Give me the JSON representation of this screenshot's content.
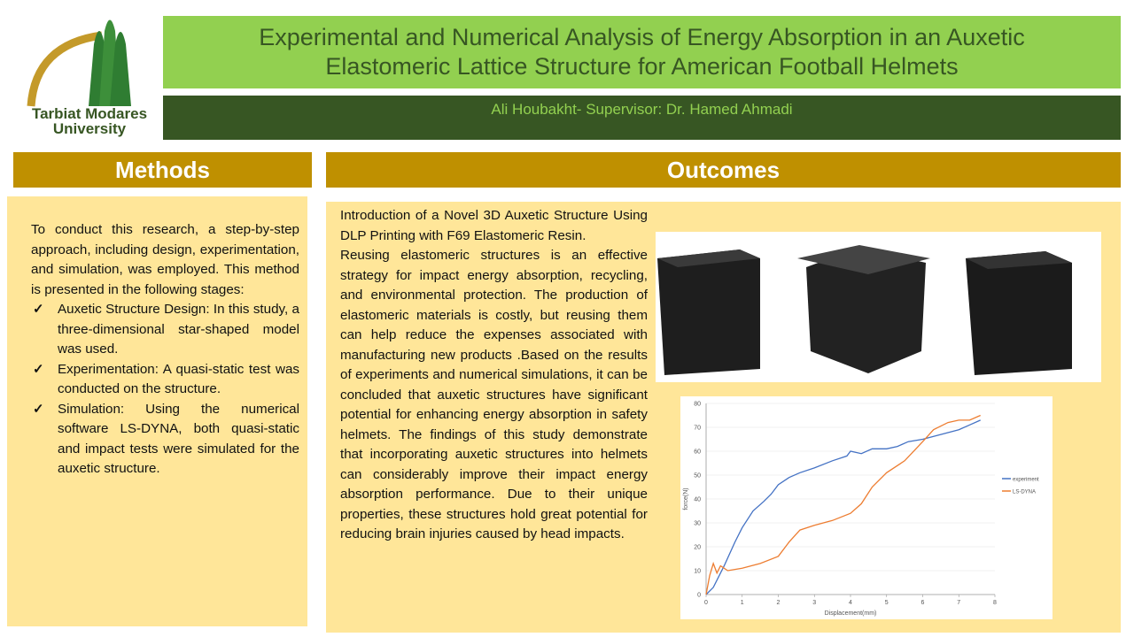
{
  "logo": {
    "line1": "Tarbiat Modares",
    "line2": "University"
  },
  "header": {
    "title": "Experimental and Numerical Analysis of Energy Absorption in an Auxetic Elastomeric Lattice Structure for American Football Helmets",
    "authors": "Ali Houbakht- Supervisor: Dr. Hamed Ahmadi"
  },
  "methods": {
    "heading": "Methods",
    "intro": "To conduct this research, a step-by-step approach, including design, experimentation, and simulation, was employed. This method is presented in the following stages:",
    "items": [
      "Auxetic Structure Design: In this study, a three-dimensional star-shaped model was used.",
      "Experimentation: A quasi-static test was conducted on the structure.",
      "Simulation: Using the numerical software LS-DYNA, both quasi-static and impact tests were simulated for the auxetic structure."
    ]
  },
  "outcomes": {
    "heading": "Outcomes",
    "paragraphs": [
      "Introduction of a Novel 3D Auxetic Structure Using DLP Printing with F69 Elastomeric Resin.",
      "Reusing elastomeric structures is an effective strategy for impact energy absorption, recycling, and environmental protection. The production of elastomeric materials is costly, but reusing them can help reduce the expenses associated with manufacturing new products .Based on the results of experiments and numerical simulations, it can be concluded that auxetic structures have significant potential for enhancing energy absorption in safety helmets. The findings of this study demonstrate that incorporating auxetic structures into helmets can considerably improve their impact energy absorption performance. Due to their unique properties, these structures hold great potential for reducing brain injuries caused by head impacts."
    ]
  },
  "chart_data": {
    "type": "line",
    "x_label": "Displacement(mm)",
    "y_label": "force(N)",
    "xlim": [
      0,
      8
    ],
    "xticks": [
      0,
      1,
      2,
      3,
      4,
      5,
      6,
      7,
      8
    ],
    "ylim": [
      0,
      80
    ],
    "yticks": [
      0,
      10,
      20,
      30,
      40,
      50,
      60,
      70,
      80
    ],
    "grid": true,
    "legend": "right",
    "series": [
      {
        "name": "experiment",
        "color": "#4472c4",
        "x": [
          0,
          0.2,
          0.5,
          0.8,
          1,
          1.3,
          1.6,
          1.8,
          2,
          2.3,
          2.6,
          3,
          3.5,
          3.9,
          4,
          4.3,
          4.6,
          5,
          5.3,
          5.6,
          6,
          6.5,
          7,
          7.3,
          7.6
        ],
        "values": [
          0,
          3,
          12,
          22,
          28,
          35,
          39,
          42,
          46,
          49,
          51,
          53,
          56,
          58,
          60,
          59,
          61,
          61,
          62,
          64,
          65,
          67,
          69,
          71,
          73
        ]
      },
      {
        "name": "LS-DYNA",
        "color": "#ed7d31",
        "x": [
          0,
          0.1,
          0.2,
          0.3,
          0.4,
          0.6,
          1,
          1.5,
          2,
          2.3,
          2.6,
          3,
          3.5,
          4,
          4.3,
          4.6,
          5,
          5.5,
          6,
          6.3,
          6.7,
          7,
          7.3,
          7.6
        ],
        "values": [
          0,
          8,
          13,
          9,
          12,
          10,
          11,
          13,
          16,
          22,
          27,
          29,
          31,
          34,
          38,
          45,
          51,
          56,
          64,
          69,
          72,
          73,
          73,
          75
        ]
      }
    ]
  }
}
